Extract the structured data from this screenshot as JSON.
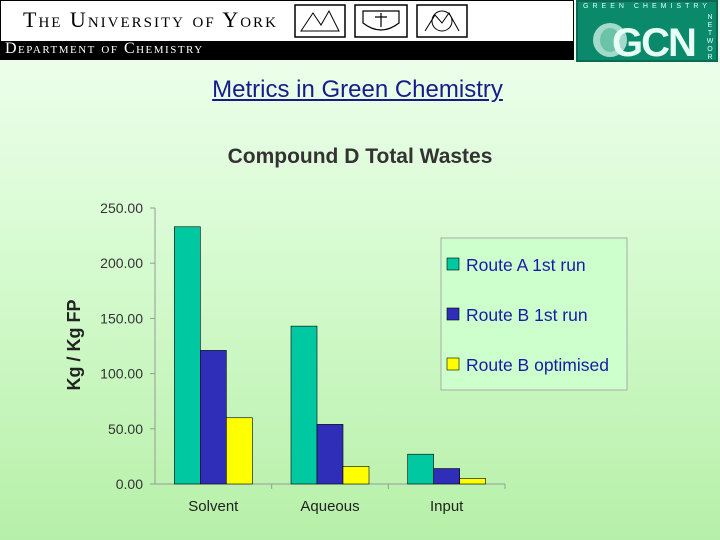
{
  "header": {
    "university": "The University of York",
    "department": "Department of Chemistry",
    "network_logo": {
      "top_text": "GREEN CHEMISTRY",
      "side_text": "NETWORK",
      "letters": "GCN"
    }
  },
  "page_title": "Metrics in Green Chemistry",
  "chart_data": {
    "type": "bar",
    "title": "Compound D Total Wastes",
    "ylabel": "Kg / Kg FP",
    "xlabel": "",
    "categories": [
      "Solvent",
      "Aqueous",
      "Input"
    ],
    "series": [
      {
        "name": "Route A  1st run",
        "values": [
          233,
          143,
          27
        ],
        "color": "#00c8a0"
      },
      {
        "name": "Route B 1st run",
        "values": [
          121,
          54,
          14
        ],
        "color": "#2e2eb8"
      },
      {
        "name": "Route B optimised",
        "values": [
          60,
          16,
          5
        ],
        "color": "#ffff00"
      }
    ],
    "ylim": [
      0,
      250
    ],
    "yticks": [
      "0.00",
      "50.00",
      "100.00",
      "150.00",
      "200.00",
      "250.00"
    ],
    "grid": false,
    "legend": "right"
  }
}
